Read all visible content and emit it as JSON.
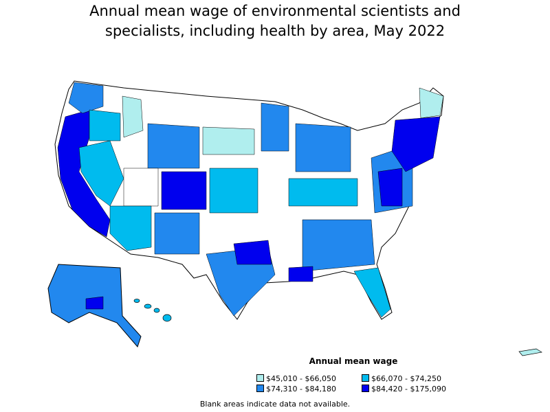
{
  "title_line1": "Annual mean wage of environmental scientists and",
  "title_line2": "specialists, including health by area, May 2022",
  "legend": {
    "title": "Annual mean wage",
    "items": [
      {
        "label": "$45,010 - $66,050",
        "color": "#b0eeee"
      },
      {
        "label": "$66,070 - $74,250",
        "color": "#00bbee"
      },
      {
        "label": "$74,310 - $84,180",
        "color": "#2288ee"
      },
      {
        "label": "$84,420 - $175,090",
        "color": "#0000ee"
      }
    ]
  },
  "footnote": "Blank areas indicate data not available.",
  "colors": {
    "tier1": "#b0eeee",
    "tier2": "#00bbee",
    "tier3": "#2288ee",
    "tier4": "#0000ee",
    "blank": "#ffffff",
    "border": "#000000"
  }
}
